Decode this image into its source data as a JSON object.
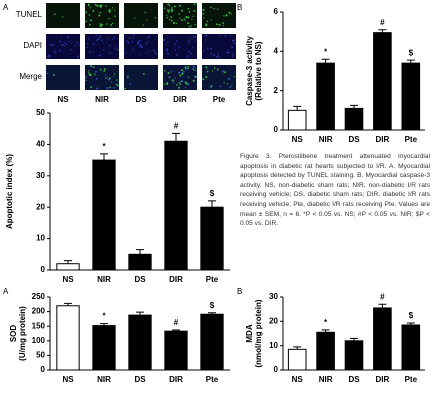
{
  "figure": {
    "panel_labels": [
      "A",
      "B",
      "A",
      "B"
    ],
    "image_rows": [
      "TUNEL",
      "DAPI",
      "Merge"
    ],
    "image_columns": [
      "NS",
      "NIR",
      "DS",
      "DIR",
      "Pte"
    ],
    "caption": "Figure 3. Pterostilbene treatment attenuated myocardial apoptosis in diabetic rat hearts subjected to I/R. A. Myocardial apoptosis detected by TUNEL staining. B. Myocardial caspase-3 activity. NS, non-diabetic sham rats; NIR, non-diabetic I/R rats receiving vehicle; DS, diabetic sham rats; DIR, diabetic I/R rats receiving vehicle; Pte, diabetic I/R rats receiving Pte. Values are mean ± SEM, n = 6. *P < 0.05 vs. NS; #P < 0.05 vs. NIR; $P < 0.05 vs. DIR."
  },
  "chart_data": [
    {
      "type": "bar",
      "ylabel": [
        "Apoptotic index (%)"
      ],
      "categories": [
        "NS",
        "NIR",
        "DS",
        "DIR",
        "Pte"
      ],
      "values": [
        2,
        35,
        5,
        41,
        20
      ],
      "errors": [
        1,
        2,
        1.5,
        2.5,
        2
      ],
      "annotations": [
        null,
        "*",
        null,
        "#",
        "$"
      ],
      "colors": [
        "#ffffff",
        "#000000",
        "#000000",
        "#000000",
        "#000000"
      ],
      "ylim": [
        0,
        50
      ],
      "yticks": [
        0,
        10,
        20,
        30,
        40,
        50
      ]
    },
    {
      "type": "bar",
      "ylabel": [
        "Caspase-3 activity",
        "(Relative to NS)"
      ],
      "categories": [
        "NS",
        "NIR",
        "DS",
        "DIR",
        "Pte"
      ],
      "values": [
        1.0,
        3.4,
        1.1,
        4.95,
        3.4
      ],
      "errors": [
        0.2,
        0.2,
        0.15,
        0.15,
        0.15
      ],
      "annotations": [
        null,
        "*",
        null,
        "#",
        "$"
      ],
      "colors": [
        "#ffffff",
        "#000000",
        "#000000",
        "#000000",
        "#000000"
      ],
      "ylim": [
        0,
        6
      ],
      "yticks": [
        0,
        2,
        4,
        6
      ]
    },
    {
      "type": "bar",
      "ylabel": [
        "SOD",
        "(U/mg protein)"
      ],
      "categories": [
        "NS",
        "NIR",
        "DS",
        "DIR",
        "Pte"
      ],
      "values": [
        220,
        152,
        188,
        133,
        191
      ],
      "errors": [
        8,
        7,
        10,
        4,
        5
      ],
      "annotations": [
        null,
        "*",
        null,
        "#",
        "$"
      ],
      "colors": [
        "#ffffff",
        "#000000",
        "#000000",
        "#000000",
        "#000000"
      ],
      "ylim": [
        0,
        250
      ],
      "yticks": [
        0,
        50,
        100,
        150,
        200,
        250
      ]
    },
    {
      "type": "bar",
      "ylabel": [
        "MDA",
        "(nmol/mg protein)"
      ],
      "categories": [
        "NS",
        "NIR",
        "DS",
        "DIR",
        "Pte"
      ],
      "values": [
        8.5,
        15.5,
        12,
        25.5,
        18.5
      ],
      "errors": [
        1,
        1,
        1,
        1.5,
        0.8
      ],
      "annotations": [
        null,
        "*",
        null,
        "#",
        "$"
      ],
      "colors": [
        "#ffffff",
        "#000000",
        "#000000",
        "#000000",
        "#000000"
      ],
      "ylim": [
        0,
        30
      ],
      "yticks": [
        0,
        10,
        20,
        30
      ]
    }
  ]
}
